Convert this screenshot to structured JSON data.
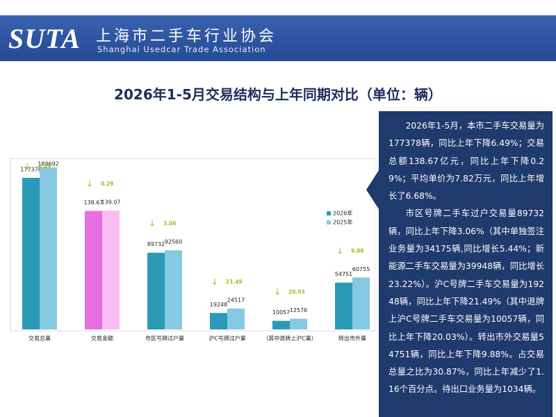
{
  "header": {
    "logo": "SUTA",
    "org_cn": "上海市二手车行业协会",
    "org_en": "Shanghai Usedcar Trade Association"
  },
  "summary": [
    "2026年1-5月，本市二手车交易量为177378辆，同比上年下降6.49%；交易总额138.67亿元，同比上年下降0.29%；平均单价为7.82万元，同比上年增长了6.68%。",
    "市区号牌二手车过户交易量89732辆，同比上年下降3.06%（其中单独签注业务量为34175辆,同比增长5.44%；新能源二手车交易量为39948辆，同比增长23.22%）。沪C号牌二手车交易量为19248辆，同比上年下降21.49%（其中退牌上沪C号牌二手车交易量为10057辆，同比上年下降20.03%）。转出市外交易量54751辆，同比上年下降9.88%。占交易总量之比为30.87%，同比上年减少了1.16个百分点。待出口业务量为1034辆。"
  ],
  "chart_data": {
    "type": "bar",
    "title": "2026年1-5月交易结构与上年同期对比（单位：辆）",
    "categories": [
      "交易总量",
      "交易金额",
      "市区号牌过户量",
      "沪C号牌过户量",
      "（其中退牌上沪C量）",
      "转出市外量"
    ],
    "series": [
      {
        "name": "2026年",
        "color": "#2b9ab6",
        "values": [
          177378,
          138.67,
          89732,
          19248,
          10057,
          54751
        ]
      },
      {
        "name": "2025年",
        "color": "#86c9e2",
        "values": [
          189692,
          139.07,
          92560,
          24517,
          12576,
          60755
        ]
      }
    ],
    "changes": [
      6.49,
      0.29,
      3.06,
      21.49,
      20.03,
      9.88
    ],
    "ylim": [
      0,
      200000
    ],
    "y2lim": [
      0,
      200
    ],
    "y2_category_index": 1,
    "y2_colors": [
      "#e76ee0",
      "#f8bef1"
    ],
    "change_color": "#a8b82a",
    "legend": "right"
  }
}
